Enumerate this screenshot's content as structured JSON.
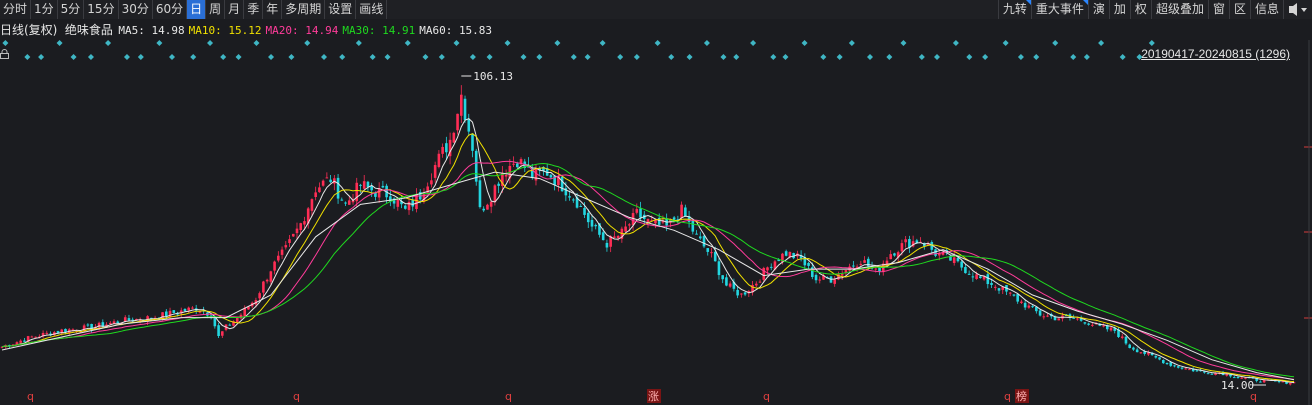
{
  "toolbar": {
    "left_tabs": [
      "分时",
      "1分",
      "5分",
      "15分",
      "30分",
      "60分",
      "日",
      "周",
      "月",
      "季",
      "年",
      "多周期",
      "设置",
      "画线"
    ],
    "active_tab": "日",
    "right_tabs": [
      "九转",
      "重大事件",
      "演",
      "加",
      "权",
      "超级叠加",
      "窗",
      "区",
      "信息"
    ],
    "accent": "#2a6fd6"
  },
  "legend": {
    "period": "日线(复权)",
    "stock": "绝味食品",
    "ma": [
      {
        "label": "MA5:",
        "value": "14.98",
        "color": "#e8e8e8"
      },
      {
        "label": "MA10:",
        "value": "15.12",
        "color": "#f0e000"
      },
      {
        "label": "MA20:",
        "value": "14.94",
        "color": "#ff3c9a"
      },
      {
        "label": "MA30:",
        "value": "14.91",
        "color": "#1fd91f"
      },
      {
        "label": "MA60:",
        "value": "15.83",
        "color": "#e8e8e8"
      }
    ]
  },
  "range_label": "20190417-20240815 (1296)",
  "chart_data": {
    "type": "candlestick",
    "date_range": [
      "20190417",
      "20240815"
    ],
    "bar_count": 1296,
    "max_label": "106.13",
    "min_label": "14.00",
    "price_path": [
      [
        0,
        26
      ],
      [
        8,
        29
      ],
      [
        16,
        31
      ],
      [
        24,
        32
      ],
      [
        32,
        34
      ],
      [
        40,
        35
      ],
      [
        48,
        37
      ],
      [
        52,
        38
      ],
      [
        56,
        36
      ],
      [
        58,
        29
      ],
      [
        60,
        32
      ],
      [
        64,
        36
      ],
      [
        68,
        41
      ],
      [
        72,
        50
      ],
      [
        76,
        56
      ],
      [
        80,
        64
      ],
      [
        84,
        75
      ],
      [
        88,
        78
      ],
      [
        92,
        70
      ],
      [
        96,
        76
      ],
      [
        100,
        74
      ],
      [
        104,
        73
      ],
      [
        108,
        68
      ],
      [
        112,
        73
      ],
      [
        116,
        82
      ],
      [
        120,
        90
      ],
      [
        123,
        104
      ],
      [
        126,
        88
      ],
      [
        128,
        68
      ],
      [
        131,
        73
      ],
      [
        134,
        80
      ],
      [
        138,
        84
      ],
      [
        142,
        79
      ],
      [
        146,
        80
      ],
      [
        150,
        76
      ],
      [
        154,
        71
      ],
      [
        158,
        63
      ],
      [
        162,
        58
      ],
      [
        166,
        61
      ],
      [
        170,
        67
      ],
      [
        174,
        64
      ],
      [
        178,
        63
      ],
      [
        182,
        68
      ],
      [
        186,
        60
      ],
      [
        190,
        54
      ],
      [
        194,
        45
      ],
      [
        198,
        42
      ],
      [
        202,
        46
      ],
      [
        206,
        52
      ],
      [
        210,
        55
      ],
      [
        214,
        53
      ],
      [
        218,
        47
      ],
      [
        222,
        47
      ],
      [
        226,
        50
      ],
      [
        230,
        53
      ],
      [
        234,
        49
      ],
      [
        238,
        55
      ],
      [
        242,
        58
      ],
      [
        246,
        59
      ],
      [
        250,
        55
      ],
      [
        254,
        53
      ],
      [
        258,
        50
      ],
      [
        262,
        47
      ],
      [
        266,
        45
      ],
      [
        270,
        42
      ],
      [
        274,
        39
      ],
      [
        278,
        36
      ],
      [
        282,
        35
      ],
      [
        286,
        35
      ],
      [
        290,
        34
      ],
      [
        294,
        32
      ],
      [
        298,
        31
      ],
      [
        302,
        26
      ],
      [
        306,
        24
      ],
      [
        310,
        22
      ],
      [
        314,
        20
      ],
      [
        318,
        19
      ],
      [
        322,
        18
      ],
      [
        326,
        18
      ],
      [
        330,
        17
      ],
      [
        334,
        16
      ],
      [
        338,
        15.5
      ],
      [
        342,
        15
      ],
      [
        346,
        14.9
      ]
    ],
    "ma_path": [
      [
        0,
        25
      ],
      [
        16,
        29
      ],
      [
        32,
        33
      ],
      [
        48,
        35
      ],
      [
        60,
        35
      ],
      [
        72,
        42
      ],
      [
        84,
        60
      ],
      [
        96,
        70
      ],
      [
        108,
        72
      ],
      [
        120,
        76
      ],
      [
        132,
        80
      ],
      [
        144,
        78
      ],
      [
        156,
        72
      ],
      [
        168,
        66
      ],
      [
        180,
        62
      ],
      [
        192,
        56
      ],
      [
        204,
        48
      ],
      [
        216,
        50
      ],
      [
        228,
        50
      ],
      [
        240,
        52
      ],
      [
        252,
        56
      ],
      [
        264,
        50
      ],
      [
        276,
        42
      ],
      [
        288,
        37
      ],
      [
        300,
        33
      ],
      [
        312,
        28
      ],
      [
        324,
        22
      ],
      [
        336,
        18
      ],
      [
        346,
        15.8
      ]
    ]
  }
}
